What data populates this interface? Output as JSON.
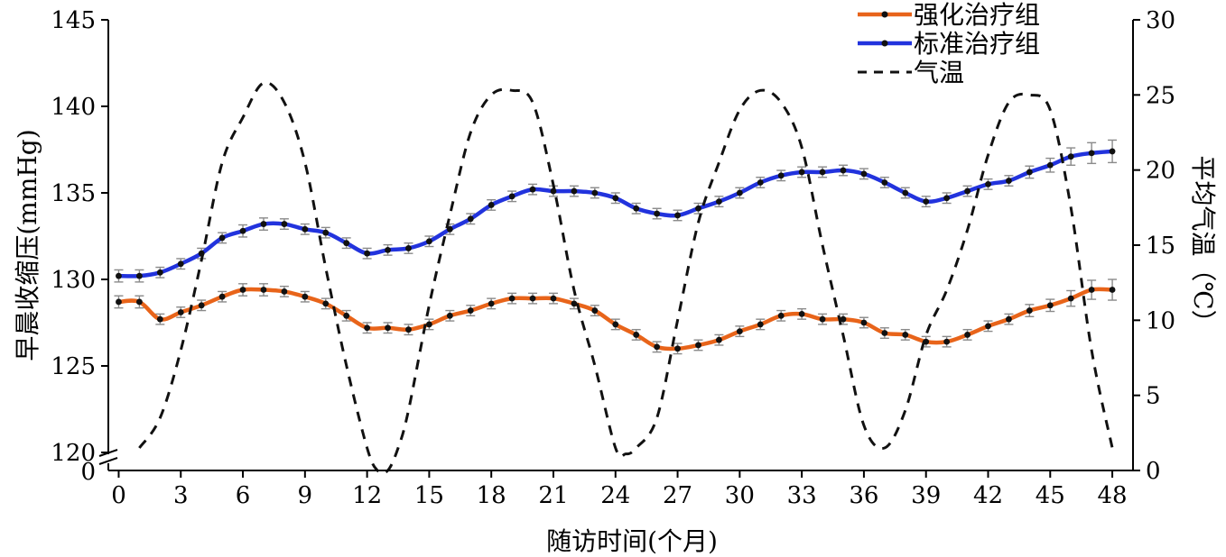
{
  "chart_data": {
    "type": "line",
    "xlabel": "随访时间(个月)",
    "ylabel": "早晨收缩压(mmHg)",
    "y2label": "平均气温（℃）",
    "x_ticks": [
      0,
      3,
      6,
      9,
      12,
      15,
      18,
      21,
      24,
      27,
      30,
      33,
      36,
      39,
      42,
      45,
      48
    ],
    "x": [
      0,
      1,
      2,
      3,
      4,
      5,
      6,
      7,
      8,
      9,
      10,
      11,
      12,
      13,
      14,
      15,
      16,
      17,
      18,
      19,
      20,
      21,
      22,
      23,
      24,
      25,
      26,
      27,
      28,
      29,
      30,
      31,
      32,
      33,
      34,
      35,
      36,
      37,
      38,
      39,
      40,
      41,
      42,
      43,
      44,
      45,
      46,
      47,
      48
    ],
    "xlim": [
      -0.5,
      49
    ],
    "ylim": [
      120,
      145
    ],
    "y_ticks": [
      120,
      125,
      130,
      135,
      140,
      145
    ],
    "y_break_label": "0",
    "y2lim": [
      0,
      30
    ],
    "y2_ticks": [
      0,
      5,
      10,
      15,
      20,
      25,
      30
    ],
    "legend_position": "top-right",
    "grid": false,
    "series": [
      {
        "name": "强化治疗组",
        "axis": "left",
        "color": "#e8641a",
        "marker": "dot",
        "error_bars": true,
        "values": [
          128.7,
          128.7,
          127.7,
          128.1,
          128.5,
          129.0,
          129.4,
          129.4,
          129.3,
          129.0,
          128.6,
          127.9,
          127.2,
          127.2,
          127.1,
          127.4,
          127.9,
          128.2,
          128.6,
          128.9,
          128.9,
          128.9,
          128.6,
          128.2,
          127.4,
          126.8,
          126.1,
          126.0,
          126.2,
          126.5,
          127.0,
          127.4,
          127.9,
          128.0,
          127.7,
          127.7,
          127.5,
          126.9,
          126.8,
          126.4,
          126.4,
          126.8,
          127.3,
          127.7,
          128.2,
          128.5,
          128.9,
          129.4,
          129.4
        ],
        "errors": [
          0.35,
          0.35,
          0.3,
          0.3,
          0.3,
          0.3,
          0.35,
          0.35,
          0.3,
          0.3,
          0.3,
          0.3,
          0.3,
          0.3,
          0.3,
          0.3,
          0.3,
          0.3,
          0.3,
          0.3,
          0.3,
          0.3,
          0.3,
          0.3,
          0.3,
          0.3,
          0.3,
          0.3,
          0.3,
          0.3,
          0.3,
          0.3,
          0.3,
          0.3,
          0.3,
          0.3,
          0.3,
          0.3,
          0.3,
          0.3,
          0.3,
          0.3,
          0.3,
          0.3,
          0.35,
          0.35,
          0.45,
          0.55,
          0.6
        ]
      },
      {
        "name": "标准治疗组",
        "axis": "left",
        "color": "#2233dd",
        "marker": "dot",
        "error_bars": true,
        "values": [
          130.2,
          130.2,
          130.4,
          130.9,
          131.5,
          132.4,
          132.8,
          133.2,
          133.2,
          132.9,
          132.7,
          132.1,
          131.5,
          131.7,
          131.8,
          132.2,
          132.9,
          133.5,
          134.3,
          134.8,
          135.2,
          135.1,
          135.1,
          135.0,
          134.7,
          134.1,
          133.8,
          133.7,
          134.1,
          134.5,
          135.0,
          135.6,
          136.0,
          136.2,
          136.2,
          136.3,
          136.1,
          135.6,
          135.0,
          134.5,
          134.7,
          135.1,
          135.5,
          135.7,
          136.2,
          136.6,
          137.1,
          137.3,
          137.4
        ],
        "errors": [
          0.35,
          0.35,
          0.3,
          0.3,
          0.3,
          0.3,
          0.35,
          0.35,
          0.3,
          0.3,
          0.3,
          0.3,
          0.3,
          0.3,
          0.3,
          0.3,
          0.3,
          0.3,
          0.3,
          0.3,
          0.3,
          0.3,
          0.3,
          0.3,
          0.3,
          0.3,
          0.3,
          0.3,
          0.3,
          0.3,
          0.3,
          0.3,
          0.3,
          0.3,
          0.3,
          0.3,
          0.3,
          0.3,
          0.3,
          0.3,
          0.3,
          0.3,
          0.3,
          0.3,
          0.35,
          0.4,
          0.5,
          0.6,
          0.65
        ]
      },
      {
        "name": "气温",
        "axis": "right",
        "color": "#111111",
        "style": "dashed",
        "x": [
          1,
          2,
          3,
          4,
          5,
          6,
          7,
          8,
          9,
          10,
          11,
          12,
          12.5,
          13,
          13.5,
          14,
          15,
          16,
          17,
          18,
          19,
          20,
          21,
          22,
          23,
          24,
          24.5,
          25,
          26,
          27,
          28,
          29,
          30,
          31,
          32,
          33,
          34,
          35,
          36,
          37,
          38,
          39,
          40,
          41,
          42,
          43,
          44,
          45,
          46,
          47,
          48
        ],
        "values": [
          1.5,
          3.5,
          8,
          14,
          20.5,
          23.5,
          25.8,
          24.5,
          20.5,
          13.5,
          7,
          1.5,
          0,
          0,
          1.5,
          4,
          11,
          17,
          22.5,
          25,
          25.3,
          24.5,
          19,
          12,
          7,
          1.5,
          1.1,
          1.5,
          3.5,
          10,
          16.5,
          20.5,
          24,
          25.3,
          24.5,
          21.5,
          15,
          9,
          3,
          1.5,
          4,
          9,
          12,
          16,
          21,
          24.5,
          25,
          24,
          17.5,
          8,
          1.5
        ]
      }
    ]
  }
}
